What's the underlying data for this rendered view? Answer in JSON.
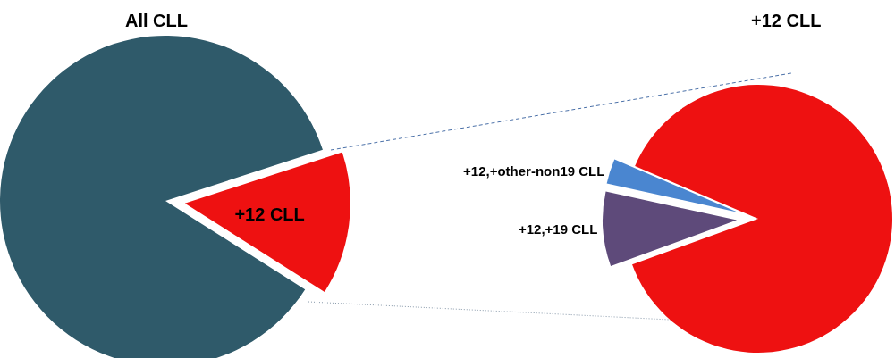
{
  "chart_data": [
    {
      "type": "pie",
      "title": "All CLL",
      "categories": [
        "+12 CLL",
        null
      ],
      "values": [
        14,
        86
      ],
      "colors": [
        "#ee1111",
        "#2f5a6a"
      ]
    },
    {
      "type": "pie",
      "title": "+12 CLL",
      "categories": [
        "+12,+19 CLL",
        "+12,+other-non19 CLL",
        null
      ],
      "values": [
        9,
        3,
        88
      ],
      "colors": [
        "#5e4a7a",
        "#4a86d0",
        "#ee1111"
      ]
    }
  ]
}
